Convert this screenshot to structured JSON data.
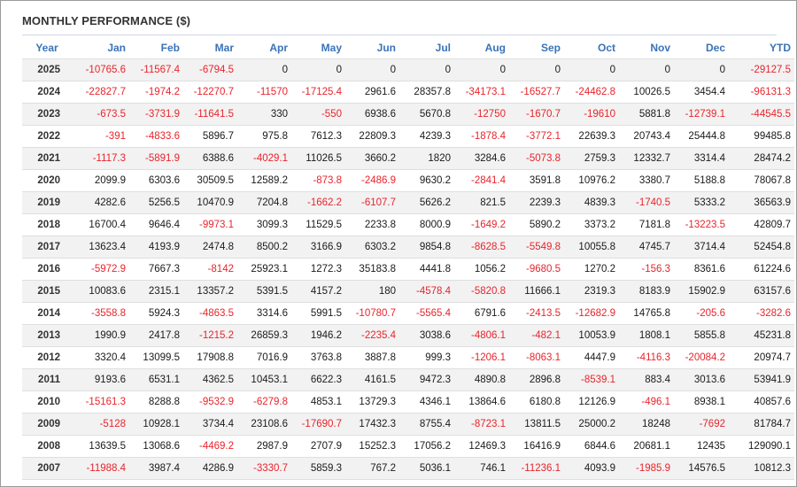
{
  "title": "MONTHLY PERFORMANCE ($)",
  "columns": [
    "Year",
    "Jan",
    "Feb",
    "Mar",
    "Apr",
    "May",
    "Jun",
    "Jul",
    "Aug",
    "Sep",
    "Oct",
    "Nov",
    "Dec",
    "YTD"
  ],
  "colors": {
    "header": "#3a73b8",
    "negative": "#e8242c",
    "positive": "#1a1a1a",
    "stripe": "#f2f2f2"
  },
  "rows": [
    [
      "2025",
      "-10765.6",
      "-11567.4",
      "-6794.5",
      "0",
      "0",
      "0",
      "0",
      "0",
      "0",
      "0",
      "0",
      "0",
      "-29127.5"
    ],
    [
      "2024",
      "-22827.7",
      "-1974.2",
      "-12270.7",
      "-11570",
      "-17125.4",
      "2961.6",
      "28357.8",
      "-34173.1",
      "-16527.7",
      "-24462.8",
      "10026.5",
      "3454.4",
      "-96131.3"
    ],
    [
      "2023",
      "-673.5",
      "-3731.9",
      "-11641.5",
      "330",
      "-550",
      "6938.6",
      "5670.8",
      "-12750",
      "-1670.7",
      "-19610",
      "5881.8",
      "-12739.1",
      "-44545.5"
    ],
    [
      "2022",
      "-391",
      "-4833.6",
      "5896.7",
      "975.8",
      "7612.3",
      "22809.3",
      "4239.3",
      "-1878.4",
      "-3772.1",
      "22639.3",
      "20743.4",
      "25444.8",
      "99485.8"
    ],
    [
      "2021",
      "-1117.3",
      "-5891.9",
      "6388.6",
      "-4029.1",
      "11026.5",
      "3660.2",
      "1820",
      "3284.6",
      "-5073.8",
      "2759.3",
      "12332.7",
      "3314.4",
      "28474.2"
    ],
    [
      "2020",
      "2099.9",
      "6303.6",
      "30509.5",
      "12589.2",
      "-873.8",
      "-2486.9",
      "9630.2",
      "-2841.4",
      "3591.8",
      "10976.2",
      "3380.7",
      "5188.8",
      "78067.8"
    ],
    [
      "2019",
      "4282.6",
      "5256.5",
      "10470.9",
      "7204.8",
      "-1662.2",
      "-6107.7",
      "5626.2",
      "821.5",
      "2239.3",
      "4839.3",
      "-1740.5",
      "5333.2",
      "36563.9"
    ],
    [
      "2018",
      "16700.4",
      "9646.4",
      "-9973.1",
      "3099.3",
      "11529.5",
      "2233.8",
      "8000.9",
      "-1649.2",
      "5890.2",
      "3373.2",
      "7181.8",
      "-13223.5",
      "42809.7"
    ],
    [
      "2017",
      "13623.4",
      "4193.9",
      "2474.8",
      "8500.2",
      "3166.9",
      "6303.2",
      "9854.8",
      "-8628.5",
      "-5549.8",
      "10055.8",
      "4745.7",
      "3714.4",
      "52454.8"
    ],
    [
      "2016",
      "-5972.9",
      "7667.3",
      "-8142",
      "25923.1",
      "1272.3",
      "35183.8",
      "4441.8",
      "1056.2",
      "-9680.5",
      "1270.2",
      "-156.3",
      "8361.6",
      "61224.6"
    ],
    [
      "2015",
      "10083.6",
      "2315.1",
      "13357.2",
      "5391.5",
      "4157.2",
      "180",
      "-4578.4",
      "-5820.8",
      "11666.1",
      "2319.3",
      "8183.9",
      "15902.9",
      "63157.6"
    ],
    [
      "2014",
      "-3558.8",
      "5924.3",
      "-4863.5",
      "3314.6",
      "5991.5",
      "-10780.7",
      "-5565.4",
      "6791.6",
      "-2413.5",
      "-12682.9",
      "14765.8",
      "-205.6",
      "-3282.6"
    ],
    [
      "2013",
      "1990.9",
      "2417.8",
      "-1215.2",
      "26859.3",
      "1946.2",
      "-2235.4",
      "3038.6",
      "-4806.1",
      "-482.1",
      "10053.9",
      "1808.1",
      "5855.8",
      "45231.8"
    ],
    [
      "2012",
      "3320.4",
      "13099.5",
      "17908.8",
      "7016.9",
      "3763.8",
      "3887.8",
      "999.3",
      "-1206.1",
      "-8063.1",
      "4447.9",
      "-4116.3",
      "-20084.2",
      "20974.7"
    ],
    [
      "2011",
      "9193.6",
      "6531.1",
      "4362.5",
      "10453.1",
      "6622.3",
      "4161.5",
      "9472.3",
      "4890.8",
      "2896.8",
      "-8539.1",
      "883.4",
      "3013.6",
      "53941.9"
    ],
    [
      "2010",
      "-15161.3",
      "8288.8",
      "-9532.9",
      "-6279.8",
      "4853.1",
      "13729.3",
      "4346.1",
      "13864.6",
      "6180.8",
      "12126.9",
      "-496.1",
      "8938.1",
      "40857.6"
    ],
    [
      "2009",
      "-5128",
      "10928.1",
      "3734.4",
      "23108.6",
      "-17690.7",
      "17432.3",
      "8755.4",
      "-8723.1",
      "13811.5",
      "25000.2",
      "18248",
      "-7692",
      "81784.7"
    ],
    [
      "2008",
      "13639.5",
      "13068.6",
      "-4469.2",
      "2987.9",
      "2707.9",
      "15252.3",
      "17056.2",
      "12469.3",
      "16416.9",
      "6844.6",
      "20681.1",
      "12435",
      "129090.1"
    ],
    [
      "2007",
      "-11988.4",
      "3987.4",
      "4286.9",
      "-3330.7",
      "5859.3",
      "767.2",
      "5036.1",
      "746.1",
      "-11236.1",
      "4093.9",
      "-1985.9",
      "14576.5",
      "10812.3"
    ]
  ]
}
